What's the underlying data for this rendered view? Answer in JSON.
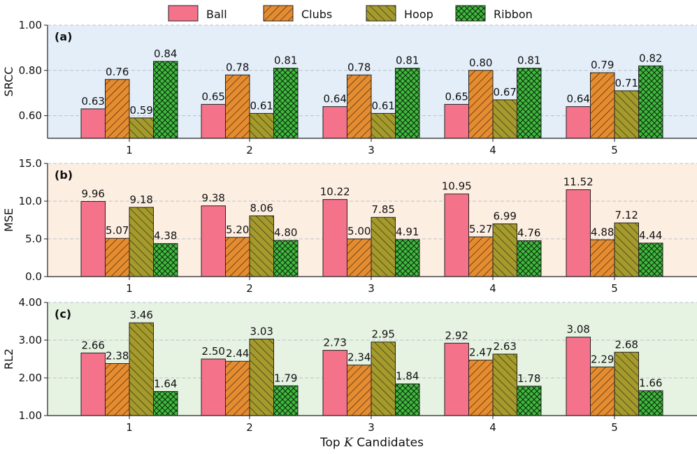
{
  "legend": {
    "position": "top",
    "items": [
      "Ball",
      "Clubs",
      "Hoop",
      "Ribbon"
    ]
  },
  "colors": {
    "Ball": "#f4728a",
    "Clubs": "#e58c30",
    "Hoop": "#a59a2c",
    "Ribbon": "#3fba3d",
    "panel_a_bg": "#e4eef8",
    "panel_b_bg": "#fdeee2",
    "panel_c_bg": "#e6f2e2",
    "grid": "#b9c2cc"
  },
  "xlabel": {
    "prefix": "Top ",
    "symbol": "K",
    "suffix": " Candidates"
  },
  "chart_data": [
    {
      "type": "bar",
      "panel": "(a)",
      "ylabel": "SRCC",
      "ylim": [
        0.5,
        1.0
      ],
      "yticks": [
        "1.00",
        "0.80",
        "0.60"
      ],
      "ytick_values": [
        1.0,
        0.8,
        0.6
      ],
      "grid": true,
      "categories": [
        "1",
        "2",
        "3",
        "4",
        "5"
      ],
      "series": [
        {
          "name": "Ball",
          "values": [
            0.63,
            0.65,
            0.64,
            0.65,
            0.64
          ],
          "labels": [
            "0.63",
            "0.65",
            "0.64",
            "0.65",
            "0.64"
          ]
        },
        {
          "name": "Clubs",
          "values": [
            0.76,
            0.78,
            0.78,
            0.8,
            0.79
          ],
          "labels": [
            "0.76",
            "0.78",
            "0.78",
            "0.80",
            "0.79"
          ]
        },
        {
          "name": "Hoop",
          "values": [
            0.59,
            0.61,
            0.61,
            0.67,
            0.71
          ],
          "labels": [
            "0.59",
            "0.61",
            "0.61",
            "0.67",
            "0.71"
          ]
        },
        {
          "name": "Ribbon",
          "values": [
            0.84,
            0.81,
            0.81,
            0.81,
            0.82
          ],
          "labels": [
            "0.84",
            "0.81",
            "0.81",
            "0.81",
            "0.82"
          ]
        }
      ]
    },
    {
      "type": "bar",
      "panel": "(b)",
      "ylabel": "MSE",
      "ylim": [
        0.0,
        15.0
      ],
      "yticks": [
        "15.0",
        "10.0",
        "5.0",
        "0.0"
      ],
      "ytick_values": [
        15.0,
        10.0,
        5.0,
        0.0
      ],
      "grid": true,
      "categories": [
        "1",
        "2",
        "3",
        "4",
        "5"
      ],
      "series": [
        {
          "name": "Ball",
          "values": [
            9.96,
            9.38,
            10.22,
            10.95,
            11.52
          ],
          "labels": [
            "9.96",
            "9.38",
            "10.22",
            "10.95",
            "11.52"
          ]
        },
        {
          "name": "Clubs",
          "values": [
            5.07,
            5.2,
            5.0,
            5.27,
            4.88
          ],
          "labels": [
            "5.07",
            "5.20",
            "5.00",
            "5.27",
            "4.88"
          ]
        },
        {
          "name": "Hoop",
          "values": [
            9.18,
            8.06,
            7.85,
            6.99,
            7.12
          ],
          "labels": [
            "9.18",
            "8.06",
            "7.85",
            "6.99",
            "7.12"
          ]
        },
        {
          "name": "Ribbon",
          "values": [
            4.38,
            4.8,
            4.91,
            4.76,
            4.44
          ],
          "labels": [
            "4.38",
            "4.80",
            "4.91",
            "4.76",
            "4.44"
          ]
        }
      ]
    },
    {
      "type": "bar",
      "panel": "(c)",
      "ylabel": "RL2",
      "ylim": [
        1.0,
        4.0
      ],
      "yticks": [
        "4.00",
        "3.00",
        "2.00",
        "1.00"
      ],
      "ytick_values": [
        4.0,
        3.0,
        2.0,
        1.0
      ],
      "grid": true,
      "categories": [
        "1",
        "2",
        "3",
        "4",
        "5"
      ],
      "series": [
        {
          "name": "Ball",
          "values": [
            2.66,
            2.5,
            2.73,
            2.92,
            3.08
          ],
          "labels": [
            "2.66",
            "2.50",
            "2.73",
            "2.92",
            "3.08"
          ]
        },
        {
          "name": "Clubs",
          "values": [
            2.38,
            2.44,
            2.34,
            2.47,
            2.29
          ],
          "labels": [
            "2.38",
            "2.44",
            "2.34",
            "2.47",
            "2.29"
          ]
        },
        {
          "name": "Hoop",
          "values": [
            3.46,
            3.03,
            2.95,
            2.63,
            2.68
          ],
          "labels": [
            "3.46",
            "3.03",
            "2.95",
            "2.63",
            "2.68"
          ]
        },
        {
          "name": "Ribbon",
          "values": [
            1.64,
            1.79,
            1.84,
            1.78,
            1.66
          ],
          "labels": [
            "1.64",
            "1.79",
            "1.84",
            "1.78",
            "1.66"
          ]
        }
      ]
    }
  ]
}
